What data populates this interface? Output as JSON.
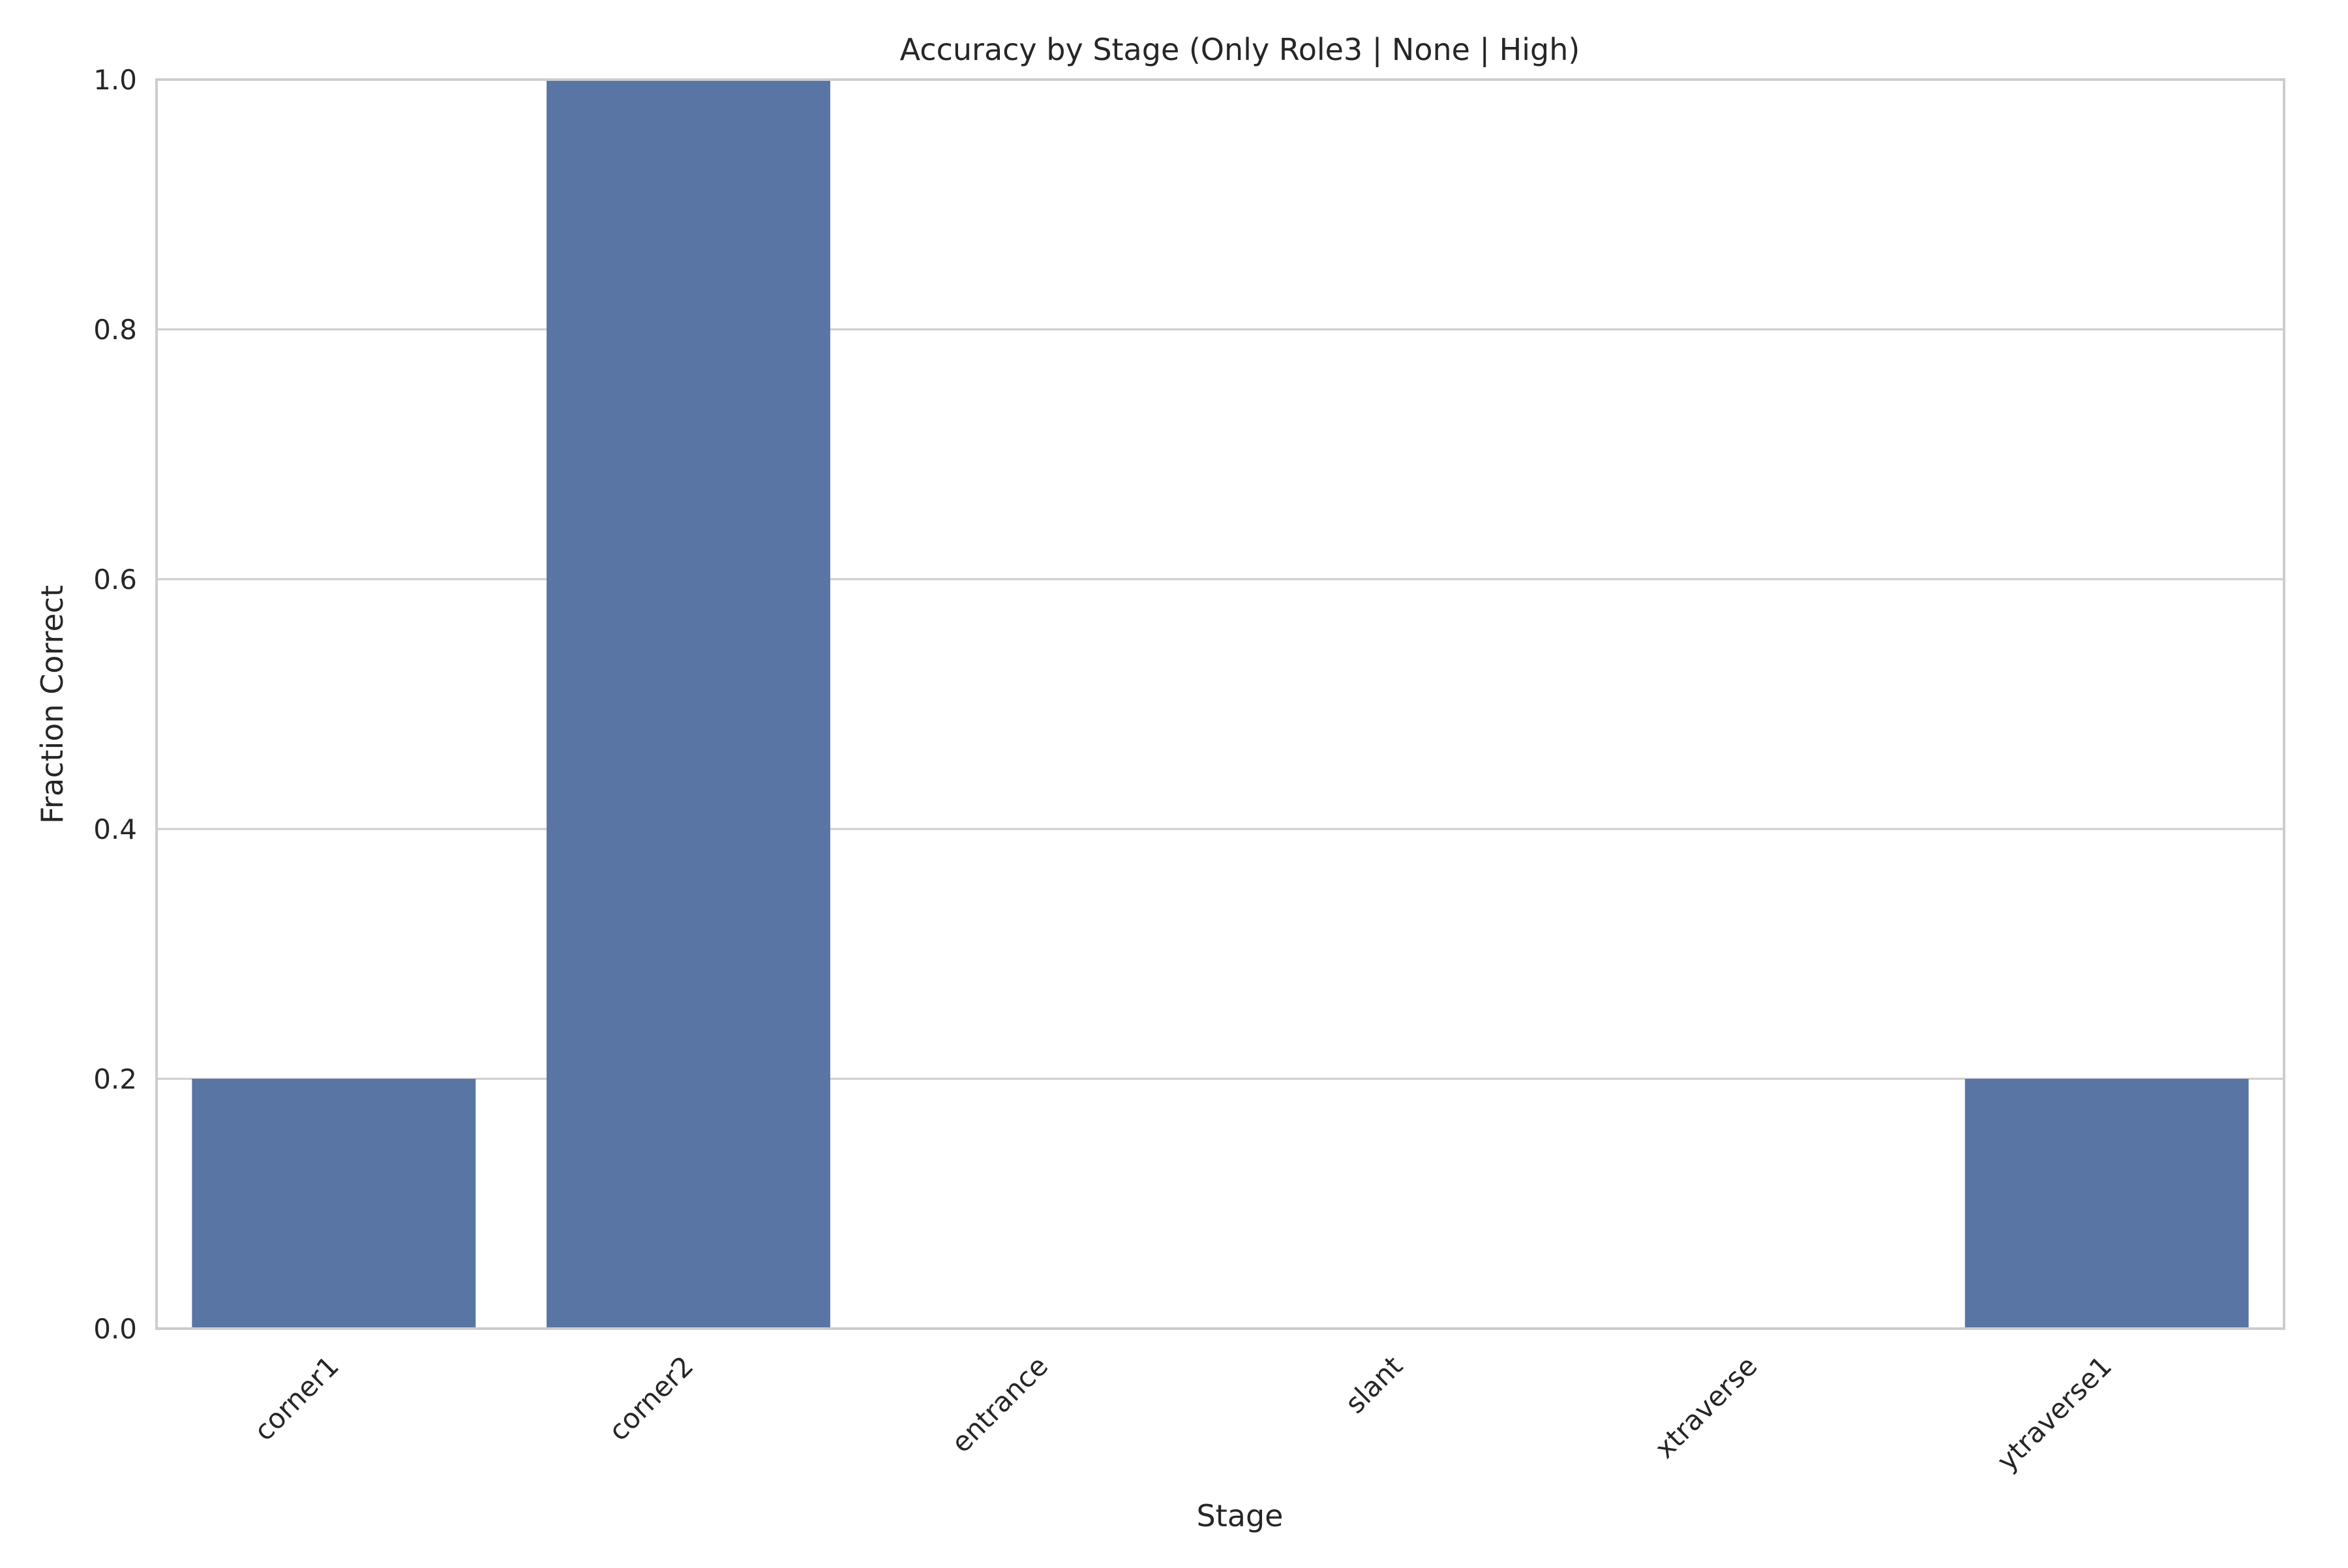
{
  "chart_data": {
    "type": "bar",
    "title": "Accuracy by Stage (Only Role3 | None | High)",
    "xlabel": "Stage",
    "ylabel": "Fraction Correct",
    "categories": [
      "corner1",
      "corner2",
      "entrance",
      "slant",
      "xtraverse",
      "ytraverse1"
    ],
    "values": [
      0.2,
      1.0,
      0.0,
      0.0,
      0.0,
      0.2
    ],
    "ylim": [
      0,
      1.0
    ],
    "yticks": [
      "0.0",
      "0.2",
      "0.4",
      "0.6",
      "0.8",
      "1.0"
    ],
    "grid": "horizontal",
    "legend": "none",
    "colors": {
      "bar": "#5975a4",
      "grid": "#cccccc",
      "axes": "#cccccc",
      "text": "#262626",
      "background": "#ffffff"
    }
  }
}
